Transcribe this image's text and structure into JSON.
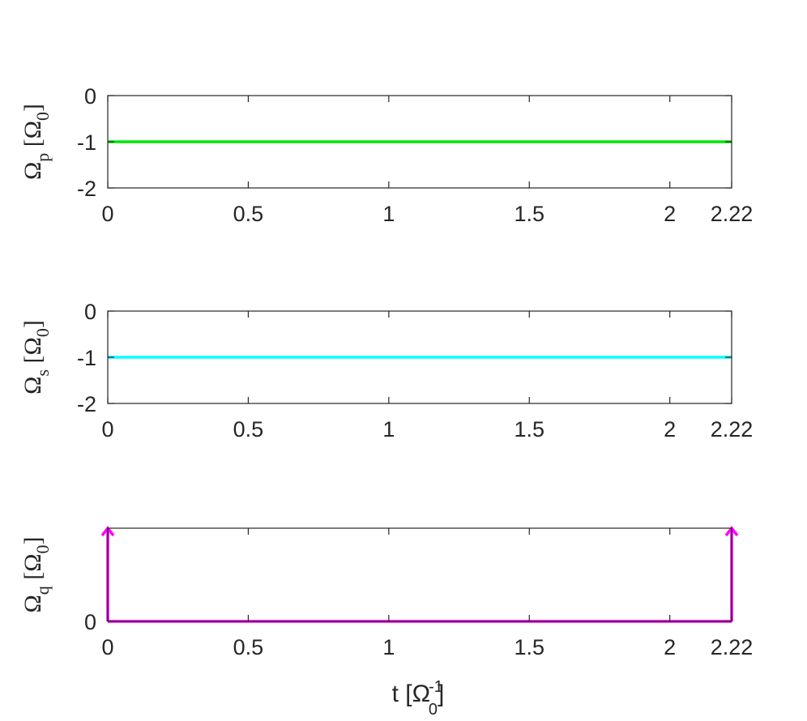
{
  "figure": {
    "xlabel": {
      "main": "t [Ω",
      "sup": "-1",
      "sub": "0",
      "close": "]"
    }
  },
  "chart_data": [
    {
      "type": "line",
      "ylabel": {
        "main": "Ω",
        "sub": "p",
        "unit_open": " [Ω",
        "unit_sub": "0",
        "unit_close": "]"
      },
      "xlim": [
        0,
        2.22
      ],
      "ylim": [
        -2,
        0
      ],
      "xticks": [
        0,
        0.5,
        1,
        1.5,
        2,
        2.22
      ],
      "xtick_labels": [
        "0",
        "0.5",
        "1",
        "1.5",
        "2",
        "2.22"
      ],
      "yticks": [
        -2,
        -1,
        0
      ],
      "ytick_labels": [
        "-2",
        "-1",
        "0"
      ],
      "series": [
        {
          "x": [
            0,
            2.22
          ],
          "y": [
            -1,
            -1
          ],
          "color": "#00e600"
        }
      ]
    },
    {
      "type": "line",
      "ylabel": {
        "main": "Ω",
        "sub": "s",
        "unit_open": " [Ω",
        "unit_sub": "0",
        "unit_close": "]"
      },
      "xlim": [
        0,
        2.22
      ],
      "ylim": [
        -2,
        0
      ],
      "xticks": [
        0,
        0.5,
        1,
        1.5,
        2,
        2.22
      ],
      "xtick_labels": [
        "0",
        "0.5",
        "1",
        "1.5",
        "2",
        "2.22"
      ],
      "yticks": [
        -2,
        -1,
        0
      ],
      "ytick_labels": [
        "-2",
        "-1",
        "0"
      ],
      "series": [
        {
          "x": [
            0,
            2.22
          ],
          "y": [
            -1,
            -1
          ],
          "color": "#00ffff"
        }
      ]
    },
    {
      "type": "line",
      "ylabel": {
        "main": "Ω",
        "sub": "q",
        "unit_open": " [Ω",
        "unit_sub": "0",
        "unit_close": "]"
      },
      "xlim": [
        0,
        2.22
      ],
      "ylim": [
        0,
        1
      ],
      "xticks": [
        0,
        0.5,
        1,
        1.5,
        2,
        2.22
      ],
      "xtick_labels": [
        "0",
        "0.5",
        "1",
        "1.5",
        "2",
        "2.22"
      ],
      "yticks": [
        0
      ],
      "ytick_labels": [
        "0"
      ],
      "series": [
        {
          "x": [
            0,
            2.22
          ],
          "y": [
            0,
            0
          ],
          "color": "#ff00ff"
        }
      ],
      "arrows": [
        {
          "x": 0,
          "y_from": 0,
          "y_to": 1
        },
        {
          "x": 2.22,
          "y_from": 0,
          "y_to": 1
        }
      ]
    }
  ]
}
